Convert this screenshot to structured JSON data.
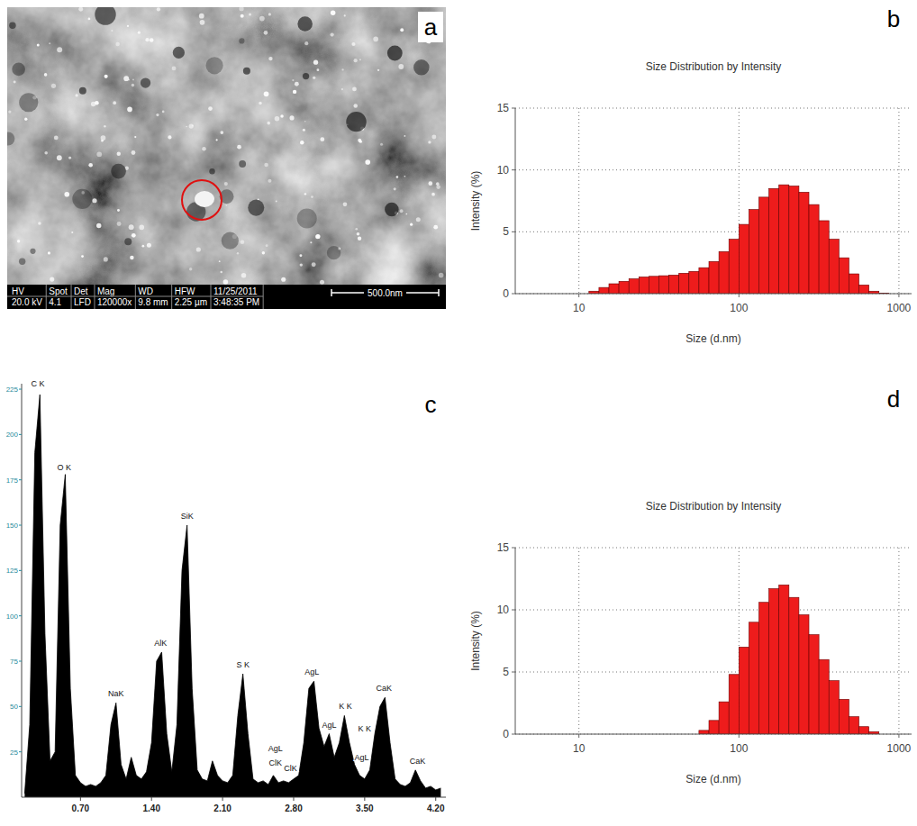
{
  "image_panel": {
    "panel_label": "a",
    "info_bar": [
      {
        "header": "HV",
        "value": "20.0 kV"
      },
      {
        "header": "Spot",
        "value": "4.1"
      },
      {
        "header": "Det",
        "value": "LFD"
      },
      {
        "header": "Mag",
        "value": "120000x"
      },
      {
        "header": "WD",
        "value": "9.8 mm"
      },
      {
        "header": "HFW",
        "value": "2.25 µm"
      },
      {
        "header": "11/25/2011",
        "value": "3:48:35 PM"
      }
    ],
    "scale_bar": "500.0nm"
  },
  "chart_data": [
    {
      "panel_label": "b",
      "type": "histogram",
      "title": "Size Distribution by Intensity",
      "x_label": "Size (d.nm)",
      "y_label": "Intensity (%)",
      "bins": [
        11.55,
        13.34,
        15.4,
        17.78,
        20.54,
        23.71,
        27.38,
        31.62,
        36.52,
        42.17,
        48.7,
        56.23,
        64.94,
        74.99,
        86.6,
        100,
        115.5,
        133.4,
        154,
        177.8,
        205.4,
        237.1,
        273.8,
        316.2,
        365.2,
        421.7,
        487,
        562.3,
        649.4,
        749.9,
        866
      ],
      "values": [
        0.2,
        0.5,
        0.8,
        1.0,
        1.2,
        1.35,
        1.4,
        1.45,
        1.5,
        1.65,
        1.8,
        2.1,
        2.6,
        3.4,
        4.4,
        5.6,
        6.8,
        7.8,
        8.5,
        8.8,
        8.7,
        8.2,
        7.2,
        5.9,
        4.4,
        2.9,
        1.6,
        0.7,
        0.2,
        0.05
      ],
      "color": "#ee1c1c",
      "log": "x",
      "xlim": [
        4,
        1200
      ],
      "ylim": [
        0,
        15
      ],
      "xticks": [
        10,
        100,
        1000
      ],
      "yticks": [
        0,
        5,
        10,
        15
      ],
      "grid": true
    },
    {
      "panel_label": "c",
      "type": "area",
      "x": [
        0.15,
        0.2,
        0.25,
        0.3,
        0.35,
        0.4,
        0.45,
        0.5,
        0.55,
        0.6,
        0.65,
        0.7,
        0.75,
        0.8,
        0.85,
        0.9,
        0.95,
        1.0,
        1.05,
        1.1,
        1.15,
        1.2,
        1.25,
        1.3,
        1.35,
        1.4,
        1.45,
        1.5,
        1.55,
        1.6,
        1.65,
        1.7,
        1.75,
        1.8,
        1.85,
        1.9,
        1.95,
        2.0,
        2.05,
        2.1,
        2.15,
        2.2,
        2.25,
        2.3,
        2.35,
        2.4,
        2.45,
        2.5,
        2.55,
        2.6,
        2.65,
        2.7,
        2.75,
        2.8,
        2.85,
        2.9,
        2.95,
        3.0,
        3.05,
        3.1,
        3.15,
        3.2,
        3.25,
        3.3,
        3.35,
        3.4,
        3.45,
        3.5,
        3.55,
        3.6,
        3.65,
        3.7,
        3.75,
        3.8,
        3.85,
        3.9,
        3.95,
        4.0,
        4.05,
        4.1,
        4.15,
        4.2,
        4.25
      ],
      "values": [
        2,
        40,
        190,
        222,
        90,
        20,
        25,
        150,
        178,
        60,
        12,
        8,
        6,
        7,
        6,
        8,
        12,
        40,
        52,
        18,
        10,
        22,
        12,
        10,
        14,
        30,
        75,
        80,
        35,
        14,
        40,
        125,
        150,
        60,
        15,
        10,
        9,
        20,
        12,
        9,
        8,
        12,
        45,
        68,
        35,
        10,
        8,
        9,
        7,
        12,
        8,
        9,
        8,
        10,
        12,
        30,
        60,
        64,
        38,
        28,
        35,
        22,
        30,
        45,
        30,
        18,
        12,
        10,
        15,
        35,
        50,
        55,
        30,
        10,
        7,
        6,
        8,
        15,
        9,
        5,
        6,
        4,
        5
      ],
      "color": "#000000",
      "xlim": [
        0.12,
        4.3
      ],
      "ylim": [
        0,
        228
      ],
      "xticks": [
        {
          "value": 0.7,
          "label": "0.70"
        },
        {
          "value": 1.4,
          "label": "1.40"
        },
        {
          "value": 2.1,
          "label": "2.10"
        },
        {
          "value": 2.8,
          "label": "2.80"
        },
        {
          "value": 3.5,
          "label": "3.50"
        },
        {
          "value": 4.2,
          "label": "4.20"
        }
      ],
      "yticks": [
        25,
        50,
        75,
        100,
        125,
        150,
        175,
        200,
        225
      ],
      "grid": false,
      "annotations": [
        {
          "text": "C K",
          "x": 0.28,
          "y": 226
        },
        {
          "text": "O K",
          "x": 0.54,
          "y": 180
        },
        {
          "text": "NaK",
          "x": 1.05,
          "y": 55
        },
        {
          "text": "AlK",
          "x": 1.49,
          "y": 83
        },
        {
          "text": "SiK",
          "x": 1.75,
          "y": 153
        },
        {
          "text": "S K",
          "x": 2.3,
          "y": 71
        },
        {
          "text": "AgL",
          "x": 2.98,
          "y": 67
        },
        {
          "text": "AgL",
          "x": 2.62,
          "y": 25
        },
        {
          "text": "ClK",
          "x": 2.62,
          "y": 17
        },
        {
          "text": "ClK",
          "x": 2.77,
          "y": 14
        },
        {
          "text": "AgL",
          "x": 3.15,
          "y": 38
        },
        {
          "text": "K K",
          "x": 3.31,
          "y": 48
        },
        {
          "text": "K K",
          "x": 3.5,
          "y": 36
        },
        {
          "text": "AgL",
          "x": 3.47,
          "y": 20
        },
        {
          "text": "CaK",
          "x": 3.69,
          "y": 58
        },
        {
          "text": "CaK",
          "x": 4.02,
          "y": 18
        }
      ]
    },
    {
      "panel_label": "d",
      "type": "histogram",
      "title": "Size Distribution by Intensity",
      "x_label": "Size (d.nm)",
      "y_label": "Intensity (%)",
      "bins": [
        56.23,
        64.94,
        74.99,
        86.6,
        100,
        115.5,
        133.4,
        154,
        177.8,
        205.4,
        237.1,
        273.8,
        316.2,
        365.2,
        421.7,
        487,
        562.3,
        649.4,
        749.9
      ],
      "values": [
        0.3,
        1.1,
        2.6,
        4.8,
        7.0,
        9.0,
        10.6,
        11.7,
        12.0,
        11.0,
        9.6,
        8.0,
        6.0,
        4.3,
        2.8,
        1.4,
        0.6,
        0.2
      ],
      "color": "#ee1c1c",
      "log": "x",
      "xlim": [
        4,
        1200
      ],
      "ylim": [
        0,
        15
      ],
      "xticks": [
        10,
        100,
        1000
      ],
      "yticks": [
        0,
        5,
        10,
        15
      ],
      "grid": true
    }
  ]
}
